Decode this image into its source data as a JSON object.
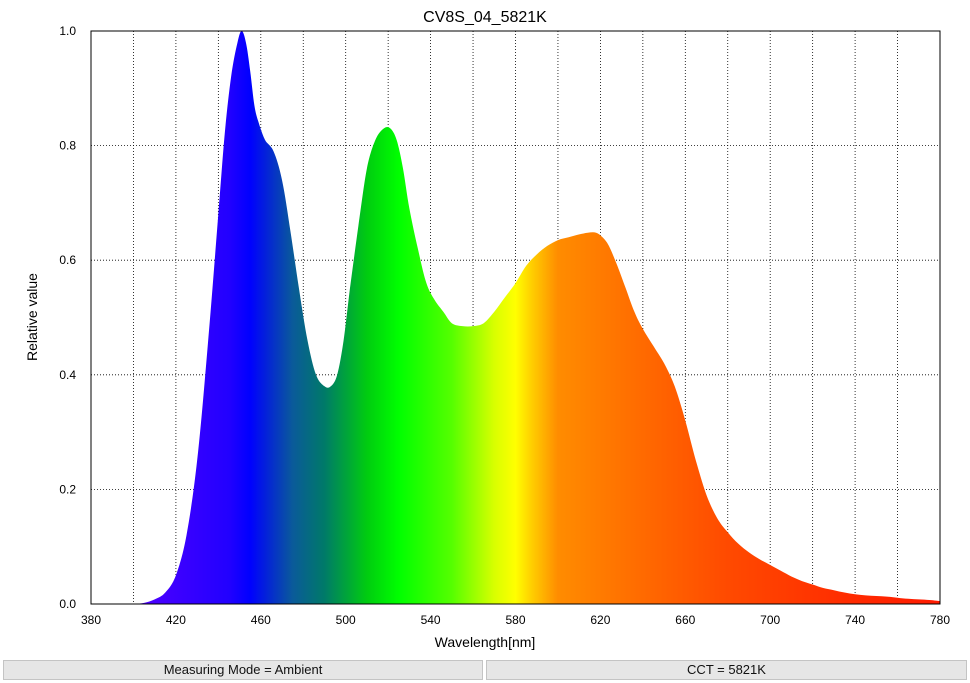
{
  "chart_data": {
    "type": "area",
    "title": "CV8S_04_5821K",
    "xlabel": "Wavelength[nm]",
    "ylabel": "Relative value",
    "xlim": [
      380,
      780
    ],
    "ylim": [
      0,
      1.0
    ],
    "x_ticks": [
      380,
      420,
      460,
      500,
      540,
      580,
      620,
      660,
      700,
      740,
      780
    ],
    "y_ticks": [
      0.0,
      0.2,
      0.4,
      0.6,
      0.8,
      1.0
    ],
    "x_tick_labels": [
      "380",
      "420",
      "460",
      "500",
      "540",
      "580",
      "620",
      "660",
      "700",
      "740",
      "780"
    ],
    "y_tick_labels": [
      "0.0",
      "0.2",
      "0.4",
      "0.6",
      "0.8",
      "1.0"
    ],
    "x_grid_step": 20,
    "grid": true,
    "fill": "spectral-gradient",
    "series": [
      {
        "x": [
          400,
          405,
          410,
          415,
          420,
          425,
          430,
          435,
          440,
          443,
          446,
          449,
          451,
          453,
          455,
          457,
          459,
          462,
          466,
          470,
          474,
          478,
          482,
          486,
          490,
          493,
          496,
          499,
          502,
          506,
          510,
          514,
          518,
          521,
          524,
          527,
          530,
          534,
          538,
          542,
          546,
          550,
          555,
          560,
          565,
          570,
          575,
          580,
          585,
          590,
          595,
          600,
          605,
          610,
          614,
          618,
          621,
          624,
          628,
          632,
          636,
          640,
          645,
          650,
          655,
          660,
          665,
          670,
          675,
          680,
          685,
          690,
          695,
          700,
          705,
          710,
          715,
          720,
          725,
          730,
          735,
          740,
          745,
          750,
          755,
          760,
          765,
          770,
          775,
          778,
          780
        ],
        "y": [
          0.0,
          0.002,
          0.008,
          0.02,
          0.05,
          0.12,
          0.25,
          0.45,
          0.68,
          0.82,
          0.92,
          0.98,
          1.0,
          0.98,
          0.93,
          0.87,
          0.84,
          0.81,
          0.79,
          0.74,
          0.65,
          0.55,
          0.46,
          0.4,
          0.38,
          0.38,
          0.4,
          0.46,
          0.55,
          0.66,
          0.76,
          0.81,
          0.83,
          0.83,
          0.81,
          0.76,
          0.69,
          0.62,
          0.56,
          0.53,
          0.51,
          0.49,
          0.485,
          0.485,
          0.49,
          0.51,
          0.535,
          0.56,
          0.59,
          0.61,
          0.625,
          0.635,
          0.64,
          0.645,
          0.648,
          0.648,
          0.64,
          0.625,
          0.59,
          0.55,
          0.51,
          0.48,
          0.45,
          0.42,
          0.38,
          0.32,
          0.25,
          0.19,
          0.15,
          0.125,
          0.105,
          0.09,
          0.078,
          0.068,
          0.058,
          0.048,
          0.04,
          0.034,
          0.028,
          0.024,
          0.02,
          0.017,
          0.015,
          0.014,
          0.013,
          0.011,
          0.009,
          0.008,
          0.007,
          0.006,
          0.005
        ]
      }
    ]
  },
  "status": {
    "mode": "Measuring Mode = Ambient",
    "cct": "CCT = 5821K"
  }
}
